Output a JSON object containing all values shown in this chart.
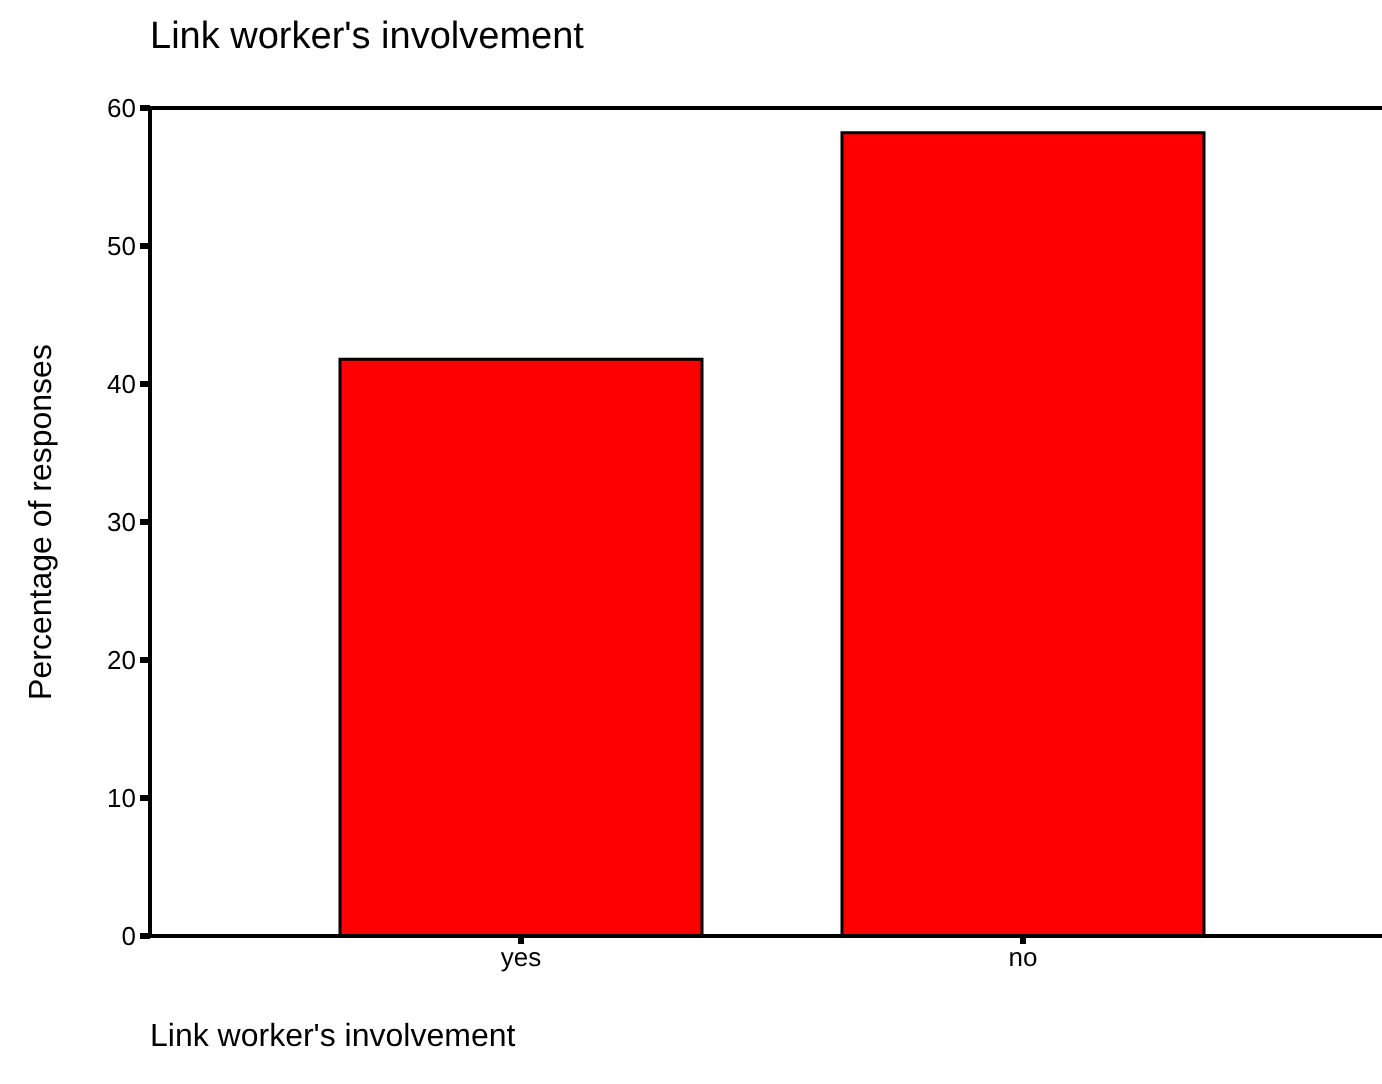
{
  "chart_data": {
    "type": "bar",
    "title": "Link worker's involvement",
    "xlabel": "Link worker's involvement",
    "ylabel": "Percentage of responses",
    "categories": [
      "yes",
      "no"
    ],
    "values": [
      41.8,
      58.2
    ],
    "color": "#ff0000",
    "ylim": [
      0,
      60
    ],
    "yticks": [
      0,
      10,
      20,
      30,
      40,
      50,
      60
    ],
    "grid": false,
    "legend": false
  }
}
